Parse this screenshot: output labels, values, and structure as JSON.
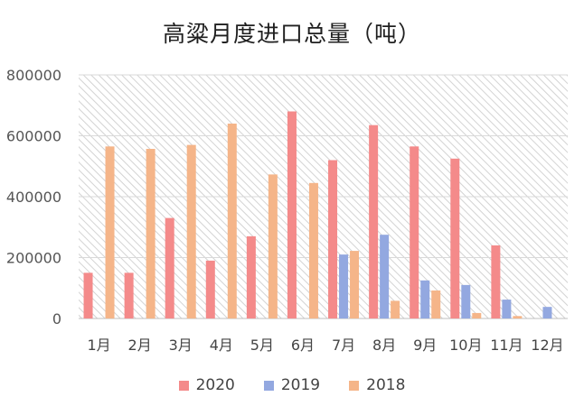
{
  "chart_data": {
    "type": "bar",
    "title": "高粱月度进口总量（吨）",
    "categories": [
      "1月",
      "2月",
      "3月",
      "4月",
      "5月",
      "6月",
      "7月",
      "8月",
      "9月",
      "10月",
      "11月",
      "12月"
    ],
    "series": [
      {
        "name": "2020",
        "color": "#f48a8a",
        "values": [
          150000,
          150000,
          330000,
          190000,
          270000,
          680000,
          520000,
          635000,
          565000,
          525000,
          240000,
          0
        ]
      },
      {
        "name": "2019",
        "color": "#93a8e0",
        "values": [
          0,
          0,
          0,
          0,
          0,
          0,
          210000,
          275000,
          125000,
          110000,
          62000,
          38000
        ]
      },
      {
        "name": "2018",
        "color": "#f5b589",
        "values": [
          565000,
          557000,
          570000,
          640000,
          473000,
          445000,
          222000,
          58000,
          92000,
          18000,
          8000,
          0
        ]
      }
    ],
    "ylim": [
      0,
      800000
    ],
    "yticks": [
      "0",
      "200000",
      "400000",
      "600000",
      "800000"
    ],
    "grid": true,
    "legend_position": "bottom"
  }
}
